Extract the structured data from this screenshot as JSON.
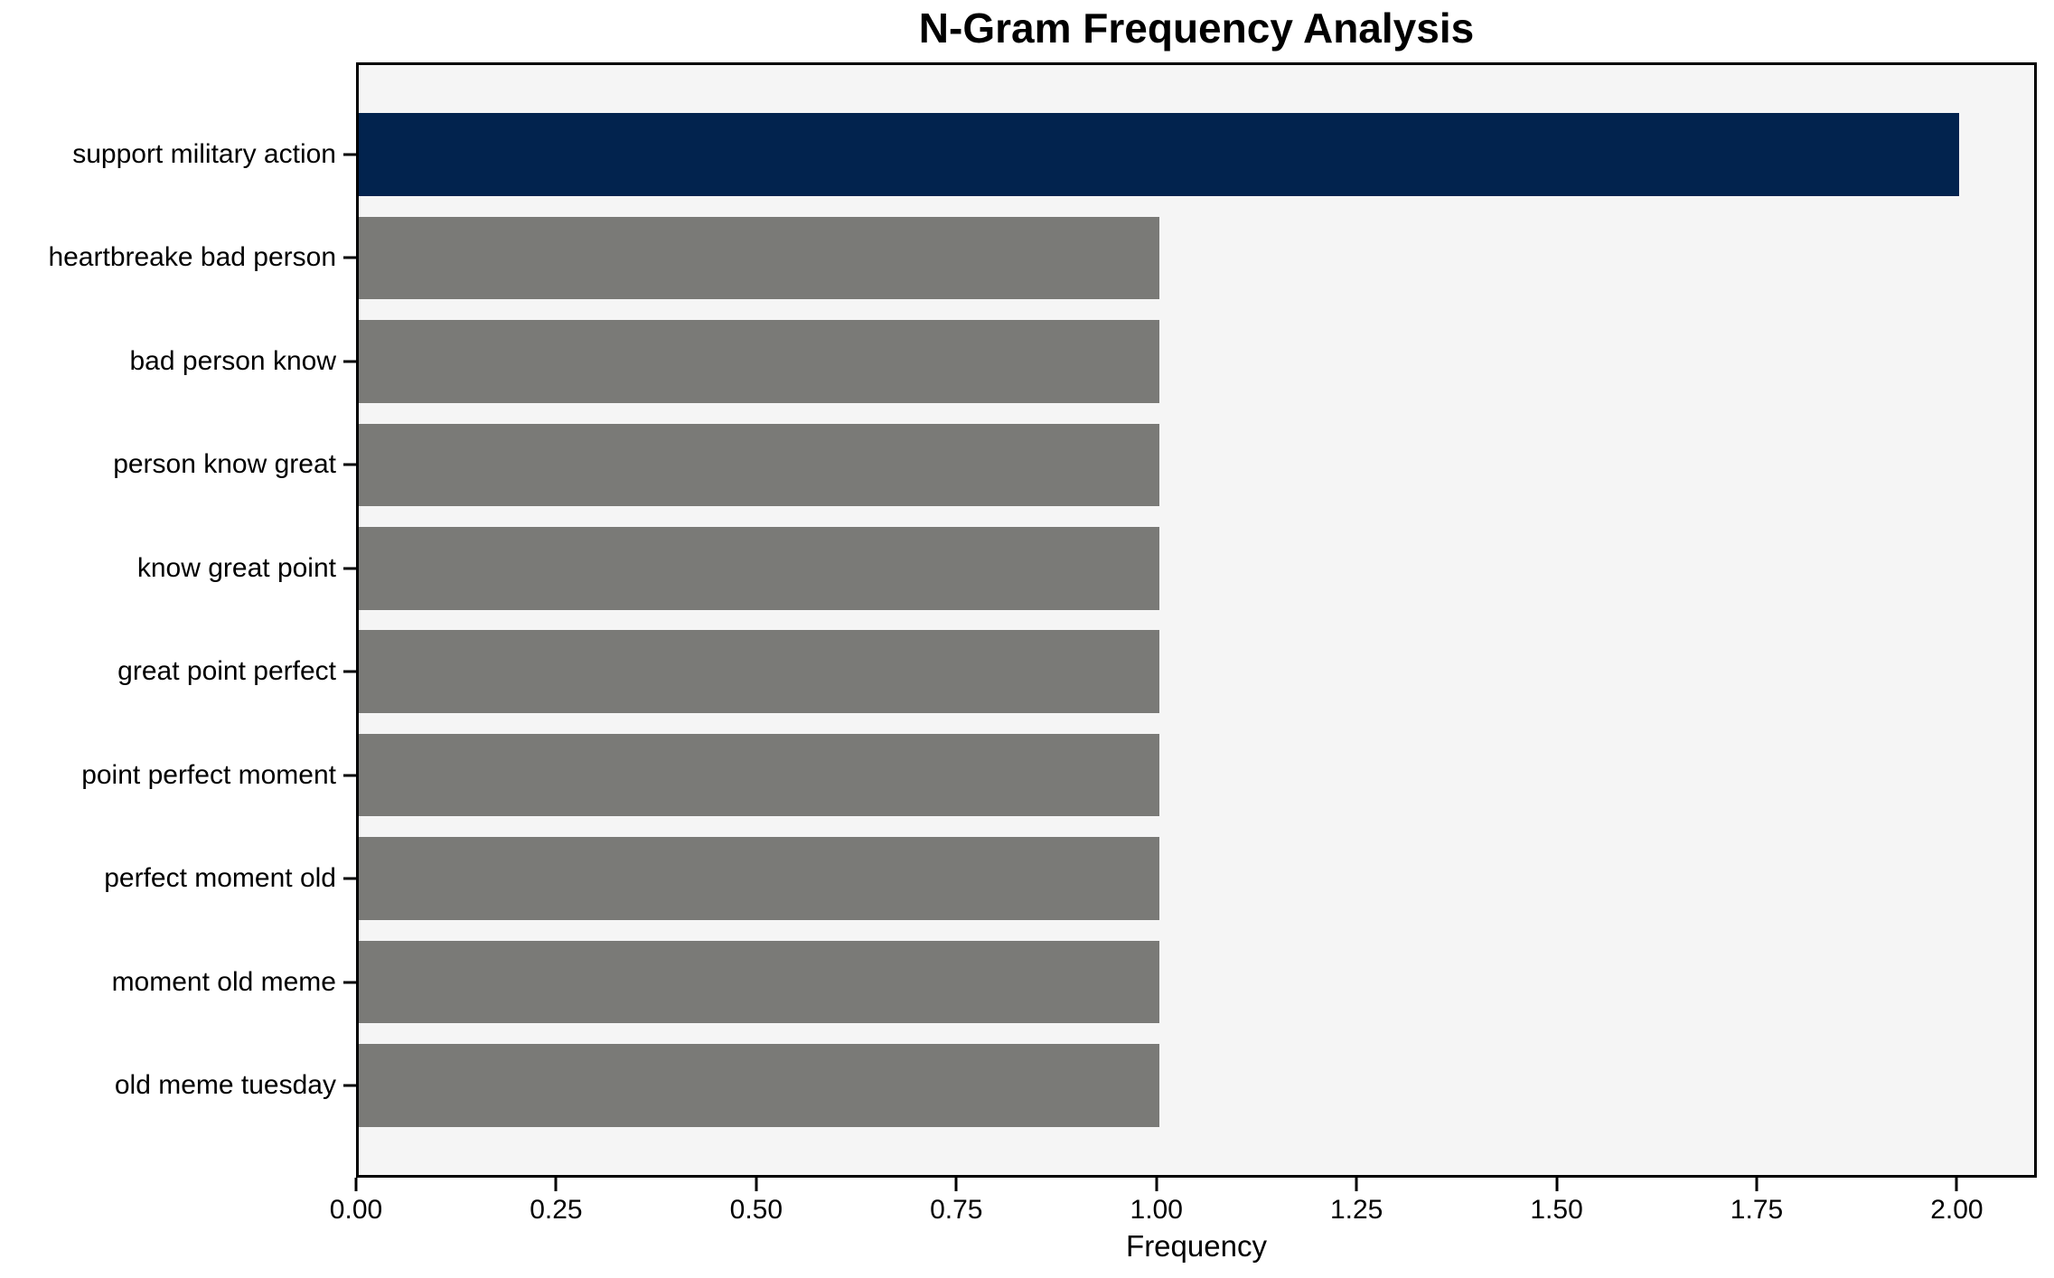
{
  "chart_data": {
    "type": "bar",
    "orientation": "horizontal",
    "title": "N-Gram Frequency Analysis",
    "xlabel": "Frequency",
    "ylabel": "",
    "categories": [
      "support military action",
      "heartbreake bad person",
      "bad person know",
      "person know great",
      "know great point",
      "great point perfect",
      "point perfect moment",
      "perfect moment old",
      "moment old meme",
      "old meme tuesday"
    ],
    "values": [
      2,
      1,
      1,
      1,
      1,
      1,
      1,
      1,
      1,
      1
    ],
    "bar_colors": [
      "#02234e",
      "#7a7a77",
      "#7a7a77",
      "#7a7a77",
      "#7a7a77",
      "#7a7a77",
      "#7a7a77",
      "#7a7a77",
      "#7a7a77",
      "#7a7a77"
    ],
    "xlim": [
      0,
      2.1
    ],
    "xticks": [
      0.0,
      0.25,
      0.5,
      0.75,
      1.0,
      1.25,
      1.5,
      1.75,
      2.0
    ],
    "xtick_labels": [
      "0.00",
      "0.25",
      "0.50",
      "0.75",
      "1.00",
      "1.25",
      "1.50",
      "1.75",
      "2.00"
    ],
    "grid": false,
    "legend": null,
    "colors": {
      "highlight_bar": "#02234e",
      "default_bar": "#7a7a77",
      "plot_background": "#f5f5f5",
      "figure_background": "#ffffff",
      "spine": "#000000",
      "text": "#000000"
    }
  }
}
